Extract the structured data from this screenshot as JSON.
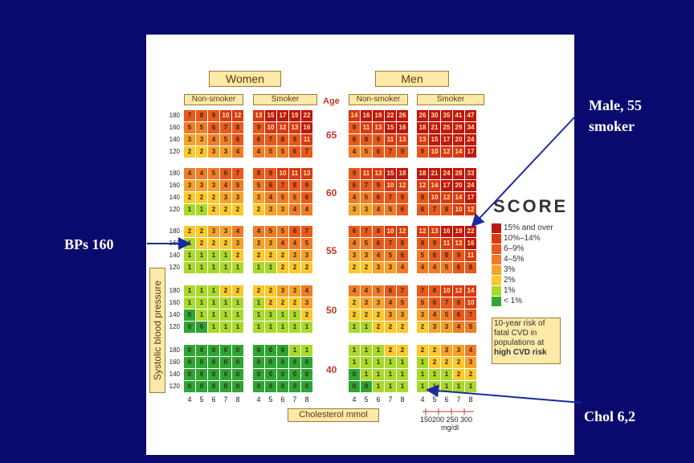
{
  "annotations": {
    "male_smoker_line1": "Male, 55",
    "male_smoker_line2": "smoker",
    "bps": "BPs 160",
    "chol": "Chol 6,2"
  },
  "headers": {
    "women": "Women",
    "men": "Men",
    "non_smoker": "Non-smoker",
    "smoker": "Smoker",
    "age": "Age"
  },
  "axis": {
    "sbp_label": "Systolic blood pressure",
    "chol_label": "Cholesterol mmol",
    "mgdl_label": "mg/dl",
    "mgdl_ticks": "150200 250 300"
  },
  "score_logo": "SCORE",
  "legend": {
    "items": [
      {
        "label": "15% and over",
        "color": "#c0170f"
      },
      {
        "label": "10%–14%",
        "color": "#d93a14"
      },
      {
        "label": "6–9%",
        "color": "#e85a1c"
      },
      {
        "label": "4–5%",
        "color": "#f07d26"
      },
      {
        "label": "3%",
        "color": "#f6a12a"
      },
      {
        "label": "2%",
        "color": "#fbc92c"
      },
      {
        "label": "1%",
        "color": "#a9d92c"
      },
      {
        "label": "< 1%",
        "color": "#2fa534"
      }
    ],
    "box_line1": "10-year risk of",
    "box_line2": "fatal CVD in",
    "box_line3": "populations at",
    "box_line4": "high CVD risk"
  },
  "chart_data": {
    "type": "heatmap",
    "title": "",
    "xlabel": "Cholesterol mmol",
    "ylabel": "Systolic blood pressure",
    "ages": [
      65,
      60,
      55,
      50,
      40
    ],
    "sbp_levels": [
      180,
      160,
      140,
      120
    ],
    "chol_levels": [
      4,
      5,
      6,
      7,
      8
    ],
    "groups": [
      "Women Non-smoker",
      "Women Smoker",
      "Men Non-smoker",
      "Men Smoker"
    ],
    "risk": {
      "65": {
        "Women Non-smoker": [
          [
            7,
            8,
            9,
            10,
            12
          ],
          [
            5,
            5,
            6,
            7,
            8
          ],
          [
            3,
            3,
            4,
            5,
            6
          ],
          [
            2,
            2,
            3,
            3,
            4
          ]
        ],
        "Women Smoker": [
          [
            13,
            15,
            17,
            19,
            22
          ],
          [
            9,
            10,
            12,
            13,
            16
          ],
          [
            6,
            7,
            8,
            9,
            11
          ],
          [
            4,
            5,
            5,
            6,
            7
          ]
        ],
        "Men Non-smoker": [
          [
            14,
            16,
            19,
            22,
            26
          ],
          [
            9,
            11,
            13,
            15,
            16
          ],
          [
            6,
            8,
            9,
            11,
            13
          ],
          [
            4,
            5,
            6,
            7,
            9
          ]
        ],
        "Men Smoker": [
          [
            26,
            30,
            35,
            41,
            47
          ],
          [
            18,
            21,
            25,
            29,
            34
          ],
          [
            13,
            15,
            17,
            20,
            24
          ],
          [
            9,
            10,
            12,
            14,
            17
          ]
        ]
      },
      "60": {
        "Women Non-smoker": [
          [
            4,
            4,
            5,
            6,
            7
          ],
          [
            3,
            3,
            3,
            4,
            5
          ],
          [
            2,
            2,
            2,
            3,
            3
          ],
          [
            1,
            1,
            2,
            2,
            2
          ]
        ],
        "Women Smoker": [
          [
            8,
            9,
            10,
            11,
            13
          ],
          [
            5,
            6,
            7,
            8,
            9
          ],
          [
            3,
            4,
            5,
            5,
            6
          ],
          [
            2,
            3,
            3,
            4,
            4
          ]
        ],
        "Men Non-smoker": [
          [
            9,
            11,
            13,
            15,
            18
          ],
          [
            6,
            7,
            9,
            10,
            12
          ],
          [
            4,
            5,
            6,
            7,
            9
          ],
          [
            3,
            3,
            4,
            5,
            6
          ]
        ],
        "Men Smoker": [
          [
            18,
            21,
            24,
            28,
            33
          ],
          [
            12,
            14,
            17,
            20,
            24
          ],
          [
            8,
            10,
            12,
            14,
            17
          ],
          [
            6,
            7,
            8,
            10,
            12
          ]
        ]
      },
      "55": {
        "Women Non-smoker": [
          [
            2,
            2,
            3,
            3,
            4
          ],
          [
            1,
            2,
            2,
            2,
            3
          ],
          [
            1,
            1,
            1,
            1,
            2
          ],
          [
            1,
            1,
            1,
            1,
            1
          ]
        ],
        "Women Smoker": [
          [
            4,
            5,
            5,
            6,
            7
          ],
          [
            3,
            3,
            4,
            4,
            5
          ],
          [
            2,
            2,
            2,
            3,
            3
          ],
          [
            1,
            1,
            2,
            2,
            2
          ]
        ],
        "Men Non-smoker": [
          [
            6,
            7,
            8,
            10,
            12
          ],
          [
            4,
            5,
            6,
            7,
            8
          ],
          [
            3,
            3,
            4,
            5,
            6
          ],
          [
            2,
            2,
            3,
            3,
            4
          ]
        ],
        "Men Smoker": [
          [
            12,
            13,
            16,
            19,
            22
          ],
          [
            8,
            9,
            11,
            13,
            16
          ],
          [
            5,
            6,
            8,
            9,
            11
          ],
          [
            4,
            4,
            5,
            6,
            8
          ]
        ]
      },
      "50": {
        "Women Non-smoker": [
          [
            1,
            1,
            1,
            2,
            2
          ],
          [
            1,
            1,
            1,
            1,
            1
          ],
          [
            0,
            1,
            1,
            1,
            1
          ],
          [
            0,
            0,
            1,
            1,
            1
          ]
        ],
        "Women Smoker": [
          [
            2,
            2,
            3,
            3,
            4
          ],
          [
            1,
            2,
            2,
            2,
            3
          ],
          [
            1,
            1,
            1,
            1,
            2
          ],
          [
            1,
            1,
            1,
            1,
            1
          ]
        ],
        "Men Non-smoker": [
          [
            4,
            4,
            5,
            6,
            7
          ],
          [
            2,
            3,
            3,
            4,
            5
          ],
          [
            2,
            2,
            2,
            3,
            3
          ],
          [
            1,
            1,
            2,
            2,
            2
          ]
        ],
        "Men Smoker": [
          [
            7,
            8,
            10,
            12,
            14
          ],
          [
            5,
            6,
            7,
            8,
            10
          ],
          [
            3,
            4,
            5,
            6,
            7
          ],
          [
            2,
            3,
            3,
            4,
            5
          ]
        ]
      },
      "40": {
        "Women Non-smoker": [
          [
            0,
            0,
            0,
            0,
            0
          ],
          [
            0,
            0,
            0,
            0,
            0
          ],
          [
            0,
            0,
            0,
            0,
            0
          ],
          [
            0,
            0,
            0,
            0,
            0
          ]
        ],
        "Women Smoker": [
          [
            0,
            0,
            0,
            1,
            1
          ],
          [
            0,
            0,
            0,
            0,
            0
          ],
          [
            0,
            0,
            0,
            0,
            0
          ],
          [
            0,
            0,
            0,
            0,
            0
          ]
        ],
        "Men Non-smoker": [
          [
            1,
            1,
            1,
            2,
            2
          ],
          [
            1,
            1,
            1,
            1,
            1
          ],
          [
            0,
            1,
            1,
            1,
            1
          ],
          [
            0,
            0,
            1,
            1,
            1
          ]
        ],
        "Men Smoker": [
          [
            2,
            2,
            3,
            3,
            4
          ],
          [
            1,
            2,
            2,
            2,
            3
          ],
          [
            1,
            1,
            1,
            2,
            2
          ],
          [
            1,
            1,
            1,
            1,
            1
          ]
        ]
      }
    }
  }
}
